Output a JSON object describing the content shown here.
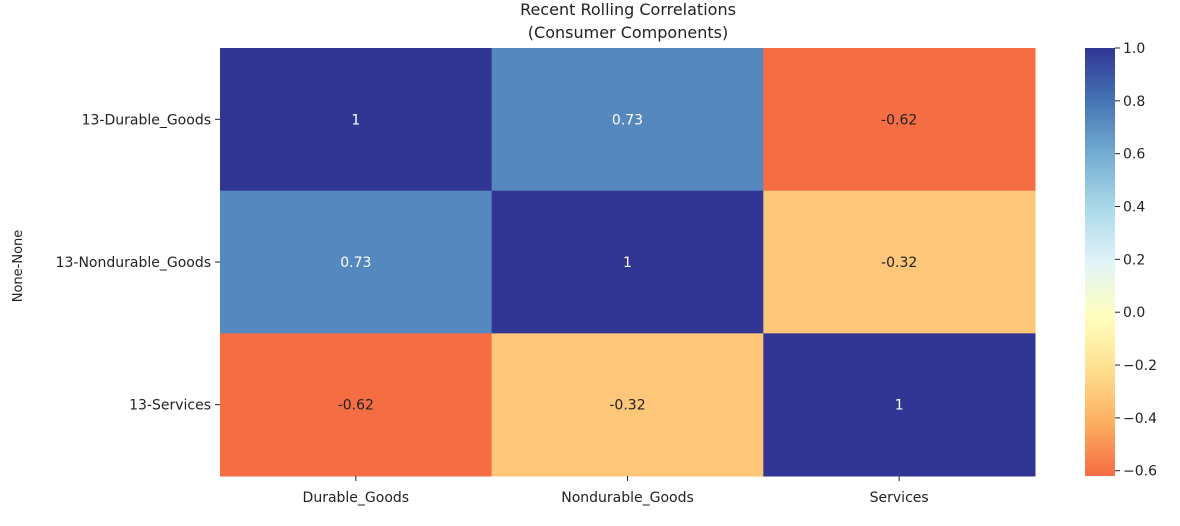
{
  "chart_data": {
    "type": "heatmap",
    "title": "Recent Rolling Correlations",
    "subtitle": "(Consumer Components)",
    "ylabel": "None-None",
    "xlabel": "",
    "x_categories": [
      "Durable_Goods",
      "Nondurable_Goods",
      "Services"
    ],
    "y_categories": [
      "13-Durable_Goods",
      "13-Nondurable_Goods",
      "13-Services"
    ],
    "values": [
      [
        1,
        0.73,
        -0.62
      ],
      [
        0.73,
        1,
        -0.32
      ],
      [
        -0.62,
        -0.32,
        1
      ]
    ],
    "annotations": [
      [
        "1",
        "0.73",
        "-0.62"
      ],
      [
        "0.73",
        "1",
        "-0.32"
      ],
      [
        "-0.62",
        "-0.32",
        "1"
      ]
    ],
    "colorbar": {
      "range": [
        -0.62,
        1.0
      ],
      "ticks": [
        1.0,
        0.8,
        0.6,
        0.4,
        0.2,
        0.0,
        -0.2,
        -0.4,
        -0.6
      ],
      "tick_labels": [
        "1.0",
        "0.8",
        "0.6",
        "0.4",
        "0.2",
        "0.0",
        "−0.2",
        "−0.4",
        "−0.6"
      ],
      "colormap": "RdYlBu",
      "stops": [
        "#f46d43",
        "#fdae61",
        "#fee090",
        "#ffffbf",
        "#e0f3f8",
        "#abd9e9",
        "#74add1",
        "#4575b4",
        "#313695"
      ]
    }
  }
}
